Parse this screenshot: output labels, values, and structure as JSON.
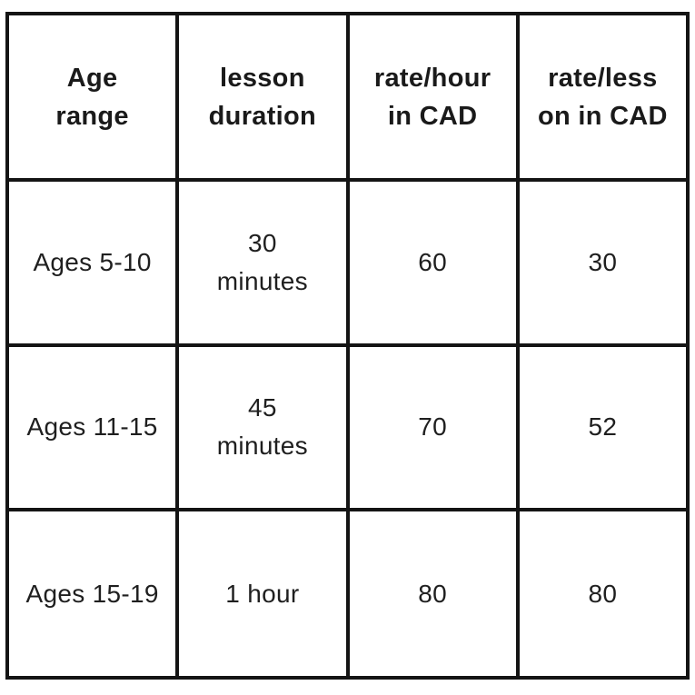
{
  "colors": {
    "background": "#ffffff",
    "grid_line": "#141414",
    "header_text": "#1a1a1a",
    "body_text": "#1f1f1f"
  },
  "table": {
    "headers": [
      "Age\nrange",
      "lesson\nduration",
      "rate/hour\nin CAD",
      "rate/less\non in CAD"
    ],
    "rows": [
      [
        "Ages 5-10",
        "30\nminutes",
        "60",
        "30"
      ],
      [
        "Ages 11-15",
        "45\nminutes",
        "70",
        "52"
      ],
      [
        "Ages 15-19",
        "1 hour",
        "80",
        "80"
      ]
    ]
  },
  "chart_data": {
    "type": "table",
    "title": "",
    "columns": [
      "Age range",
      "lesson duration",
      "rate/hour in CAD",
      "rate/lesson in CAD"
    ],
    "rows": [
      {
        "age_range": "Ages 5-10",
        "lesson_duration": "30 minutes",
        "rate_per_hour_cad": 60,
        "rate_per_lesson_cad": 30
      },
      {
        "age_range": "Ages 11-15",
        "lesson_duration": "45 minutes",
        "rate_per_hour_cad": 70,
        "rate_per_lesson_cad": 52
      },
      {
        "age_range": "Ages 15-19",
        "lesson_duration": "1 hour",
        "rate_per_hour_cad": 80,
        "rate_per_lesson_cad": 80
      }
    ]
  }
}
